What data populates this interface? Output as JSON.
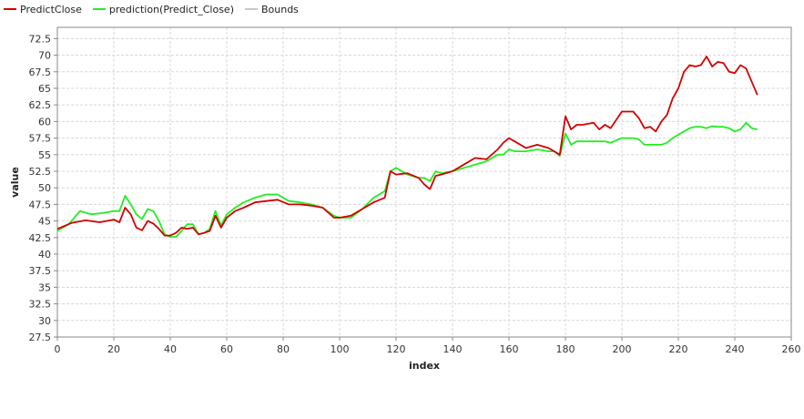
{
  "chart_data": {
    "type": "line",
    "xlabel": "index",
    "ylabel": "value",
    "xlim": [
      0,
      260
    ],
    "ylim": [
      27.5,
      74.2
    ],
    "x_ticks": [
      0,
      20,
      40,
      60,
      80,
      100,
      120,
      140,
      160,
      180,
      200,
      220,
      240,
      260
    ],
    "y_ticks": [
      27.5,
      30,
      32.5,
      35,
      37.5,
      40,
      42.5,
      45,
      47.5,
      50,
      52.5,
      55,
      57.5,
      60,
      62.5,
      65,
      67.5,
      70,
      72.5
    ],
    "x_tick_labels": [
      "0",
      "20",
      "40",
      "60",
      "80",
      "100",
      "120",
      "140",
      "160",
      "180",
      "200",
      "220",
      "240",
      "260"
    ],
    "y_tick_labels": [
      "27.5",
      "30",
      "32.5",
      "35",
      "37.5",
      "40",
      "42.5",
      "45",
      "47.5",
      "50",
      "52.5",
      "55",
      "57.5",
      "60",
      "62.5",
      "65",
      "67.5",
      "70",
      "72.5"
    ],
    "grid": true,
    "legend_position": "top-left",
    "series": [
      {
        "name": "PredictClose",
        "color": "#d40000",
        "x": [
          0,
          5,
          10,
          15,
          20,
          22,
          24,
          26,
          28,
          30,
          32,
          34,
          36,
          38,
          40,
          42,
          44,
          46,
          48,
          50,
          52,
          54,
          56,
          58,
          60,
          63,
          66,
          70,
          74,
          78,
          82,
          86,
          90,
          94,
          98,
          100,
          104,
          108,
          112,
          116,
          118,
          120,
          124,
          128,
          130,
          132,
          134,
          136,
          140,
          144,
          148,
          152,
          156,
          158,
          160,
          162,
          166,
          170,
          174,
          176,
          178,
          180,
          182,
          184,
          186,
          190,
          192,
          194,
          196,
          200,
          204,
          206,
          208,
          210,
          212,
          214,
          216,
          218,
          220,
          222,
          224,
          226,
          228,
          230,
          232,
          234,
          236,
          238,
          240,
          242,
          244,
          246,
          248
        ],
        "values": [
          43.8,
          44.7,
          45.1,
          44.8,
          45.2,
          44.8,
          47.0,
          46.0,
          44.0,
          43.6,
          45.0,
          44.6,
          43.8,
          42.8,
          42.8,
          43.2,
          44.0,
          43.8,
          44.0,
          43.0,
          43.2,
          43.5,
          45.8,
          44.0,
          45.5,
          46.5,
          47.0,
          47.8,
          48.0,
          48.2,
          47.5,
          47.5,
          47.3,
          47.0,
          45.5,
          45.5,
          45.8,
          46.8,
          47.8,
          48.5,
          52.5,
          52.0,
          52.2,
          51.5,
          50.5,
          49.8,
          51.8,
          52.0,
          52.5,
          53.5,
          54.5,
          54.3,
          55.8,
          56.8,
          57.5,
          57.0,
          56.0,
          56.5,
          56.0,
          55.5,
          55.0,
          60.8,
          58.8,
          59.5,
          59.5,
          59.8,
          58.8,
          59.5,
          59.0,
          61.5,
          61.5,
          60.5,
          59.0,
          59.2,
          58.5,
          60.0,
          61.0,
          63.5,
          65.0,
          67.5,
          68.5,
          68.3,
          68.5,
          69.8,
          68.3,
          69.0,
          68.8,
          67.5,
          67.3,
          68.5,
          68.0,
          66.0,
          64.0
        ]
      },
      {
        "name": "prediction(Predict_Close)",
        "color": "#22ee22",
        "x": [
          0,
          4,
          8,
          12,
          16,
          20,
          22,
          24,
          26,
          28,
          30,
          32,
          34,
          36,
          38,
          40,
          42,
          44,
          46,
          48,
          50,
          52,
          54,
          56,
          58,
          60,
          63,
          66,
          70,
          74,
          78,
          82,
          86,
          90,
          94,
          98,
          100,
          104,
          108,
          112,
          116,
          118,
          120,
          124,
          128,
          130,
          132,
          134,
          136,
          140,
          144,
          148,
          152,
          156,
          158,
          160,
          162,
          166,
          170,
          174,
          176,
          178,
          180,
          182,
          184,
          186,
          190,
          192,
          194,
          196,
          200,
          204,
          206,
          208,
          210,
          212,
          214,
          216,
          218,
          220,
          222,
          224,
          226,
          228,
          230,
          232,
          234,
          236,
          238,
          240,
          242,
          244,
          246,
          248
        ],
        "values": [
          43.5,
          44.5,
          46.5,
          46.0,
          46.2,
          46.5,
          46.5,
          48.8,
          47.5,
          46.0,
          45.3,
          46.8,
          46.5,
          45.0,
          43.0,
          42.6,
          42.6,
          43.5,
          44.5,
          44.5,
          43.0,
          43.2,
          43.8,
          46.5,
          44.3,
          46.0,
          47.0,
          47.8,
          48.5,
          49.0,
          49.0,
          48.0,
          47.8,
          47.5,
          47.0,
          45.8,
          45.5,
          45.5,
          46.8,
          48.5,
          49.5,
          52.5,
          53.0,
          52.0,
          51.5,
          51.5,
          51.0,
          52.5,
          52.2,
          52.5,
          53.0,
          53.5,
          54.0,
          55.0,
          55.0,
          55.8,
          55.5,
          55.5,
          55.8,
          55.5,
          55.5,
          54.8,
          58.2,
          56.5,
          57.0,
          57.0,
          57.0,
          57.0,
          57.0,
          56.8,
          57.5,
          57.5,
          57.3,
          56.5,
          56.5,
          56.5,
          56.5,
          56.8,
          57.5,
          58.0,
          58.5,
          59.0,
          59.2,
          59.2,
          59.0,
          59.3,
          59.2,
          59.2,
          59.0,
          58.5,
          58.8,
          59.8,
          59.0,
          58.8
        ]
      },
      {
        "name": "Bounds",
        "color": "#c8c8c8",
        "x": [],
        "values": []
      }
    ]
  }
}
